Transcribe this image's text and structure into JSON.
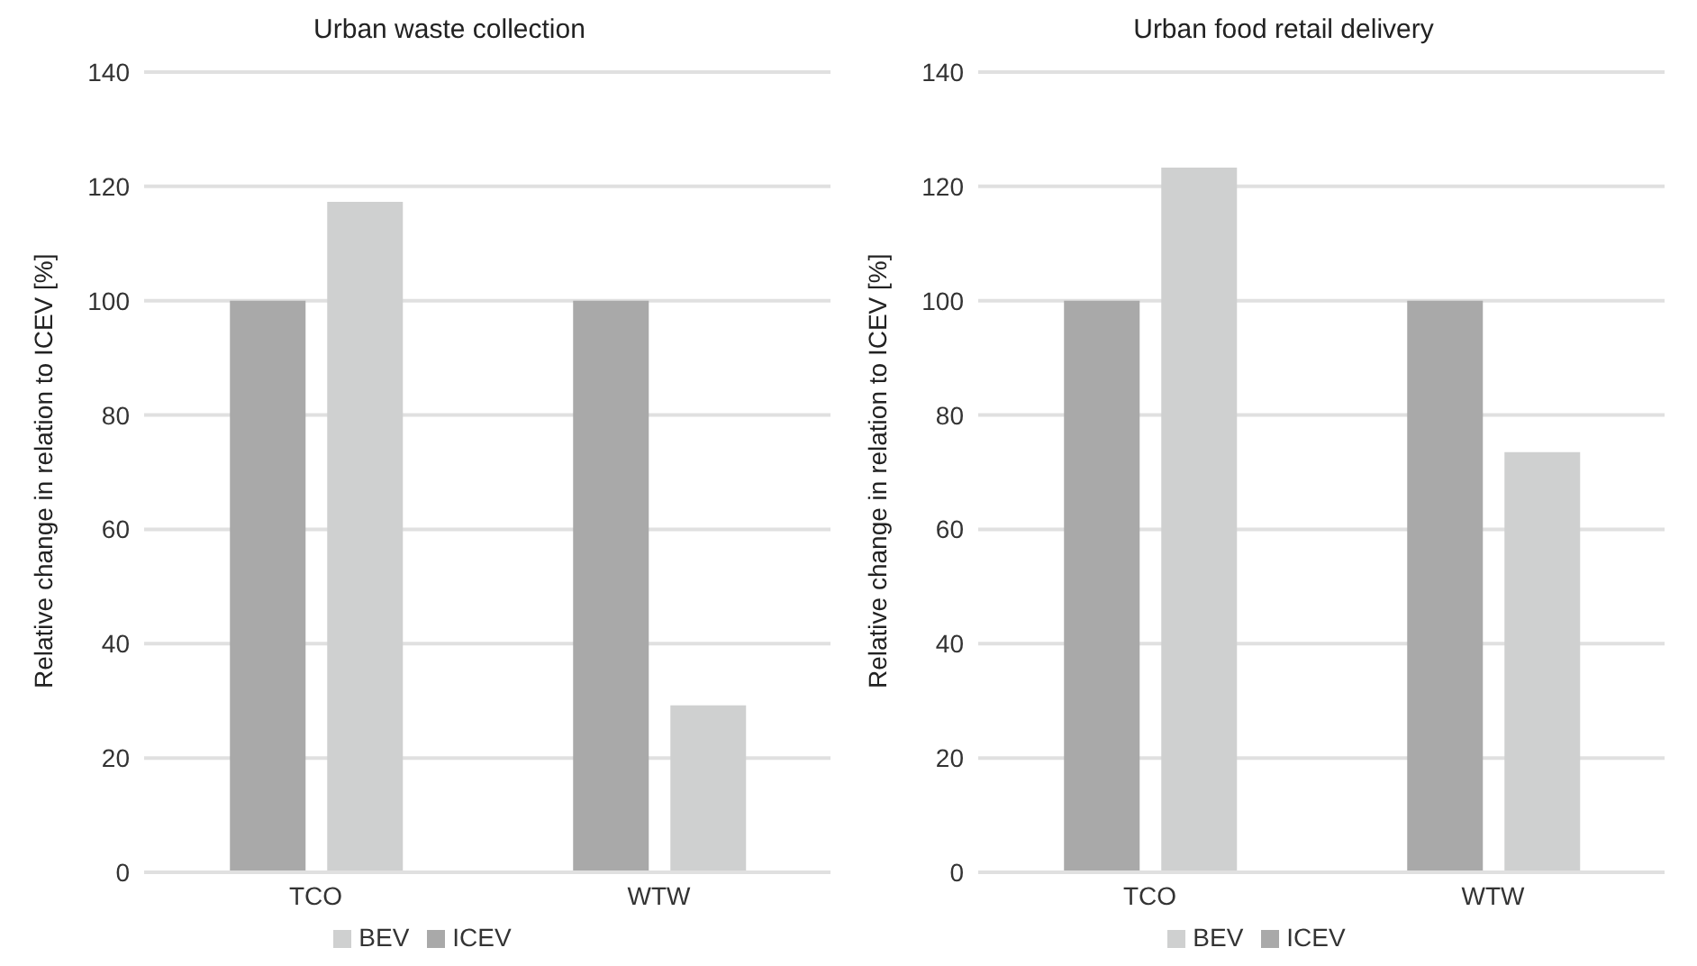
{
  "chart_data": [
    {
      "type": "bar",
      "title": "Urban waste collection",
      "ylabel": "Relative change in relation to ICEV [%]",
      "categories": [
        "TCO",
        "WTW"
      ],
      "series": [
        {
          "name": "ICEV",
          "color": "#a9a9a9",
          "values": [
            100,
            100
          ]
        },
        {
          "name": "BEV",
          "color": "#cfd0d0",
          "values": [
            117.3,
            29.2
          ]
        }
      ],
      "ylim": [
        0,
        140
      ],
      "yticks": [
        0,
        20,
        40,
        60,
        80,
        100,
        120,
        140
      ],
      "grid": "y",
      "legend": "bottom"
    },
    {
      "type": "bar",
      "title": "Urban food retail delivery",
      "ylabel": "Relative change in relation to ICEV [%]",
      "categories": [
        "TCO",
        "WTW"
      ],
      "series": [
        {
          "name": "ICEV",
          "color": "#a9a9a9",
          "values": [
            100,
            100
          ]
        },
        {
          "name": "BEV",
          "color": "#cfd0d0",
          "values": [
            123.3,
            73.5
          ]
        }
      ],
      "ylim": [
        0,
        140
      ],
      "yticks": [
        0,
        20,
        40,
        60,
        80,
        100,
        120,
        140
      ],
      "grid": "y",
      "legend": "bottom"
    }
  ]
}
